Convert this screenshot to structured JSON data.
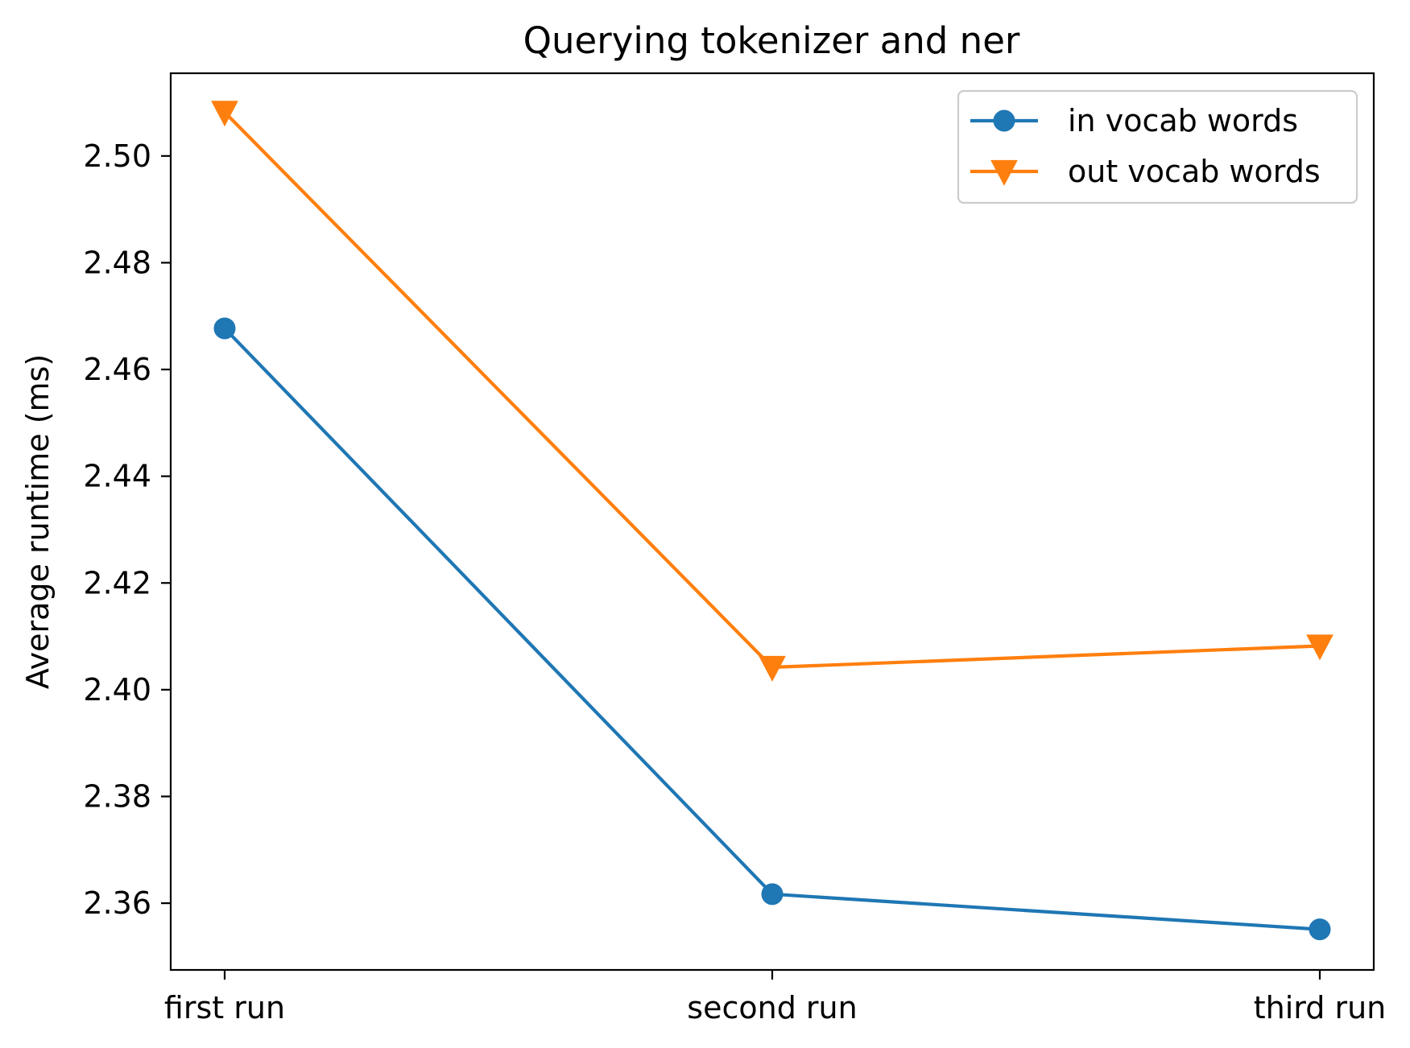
{
  "chart_data": {
    "type": "line",
    "title": "Querying tokenizer and ner",
    "xlabel": "",
    "ylabel": "Average runtime (ms)",
    "categories": [
      "first run",
      "second run",
      "third run"
    ],
    "ylim": [
      2.3475,
      2.5155
    ],
    "yticks": [
      2.36,
      2.38,
      2.4,
      2.42,
      2.44,
      2.46,
      2.48,
      2.5
    ],
    "ytick_labels": [
      "2.36",
      "2.38",
      "2.40",
      "2.42",
      "2.44",
      "2.46",
      "2.48",
      "2.50"
    ],
    "grid": false,
    "legend_position": "upper right",
    "series": [
      {
        "name": "in vocab words",
        "values": [
          2.4677,
          2.3617,
          2.3551
        ],
        "color": "#1f77b4",
        "marker": "circle"
      },
      {
        "name": "out vocab words",
        "values": [
          2.5082,
          2.4042,
          2.4082
        ],
        "color": "#ff7f0e",
        "marker": "triangle-down"
      }
    ]
  }
}
